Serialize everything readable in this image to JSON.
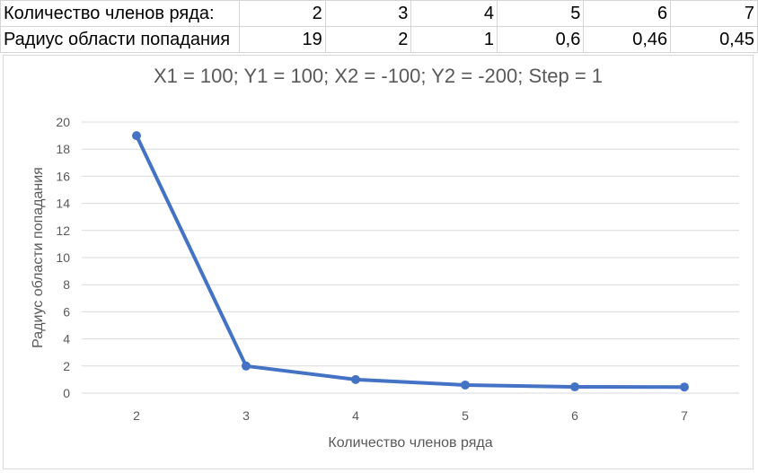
{
  "table": {
    "rows": [
      {
        "label": "Количество членов ряда:",
        "cells": [
          "2",
          "3",
          "4",
          "5",
          "6",
          "7"
        ]
      },
      {
        "label": "Радиус области попадания",
        "cells": [
          "19",
          "2",
          "1",
          "0,6",
          "0,46",
          "0,45"
        ]
      }
    ]
  },
  "chart_data": {
    "type": "line",
    "title": "X1 = 100; Y1 = 100; X2 = -100; Y2 = -200; Step = 1",
    "xlabel": "Количество членов ряда",
    "ylabel": "Радиус области попадания",
    "categories": [
      "2",
      "3",
      "4",
      "5",
      "6",
      "7"
    ],
    "series": [
      {
        "values": [
          19,
          2,
          1,
          0.6,
          0.46,
          0.45
        ],
        "color": "#4472c4"
      }
    ],
    "ylim": [
      0,
      20
    ],
    "yticks": [
      "0",
      "2",
      "4",
      "6",
      "8",
      "10",
      "12",
      "14",
      "16",
      "18",
      "20"
    ],
    "grid": true,
    "legend": "none"
  }
}
